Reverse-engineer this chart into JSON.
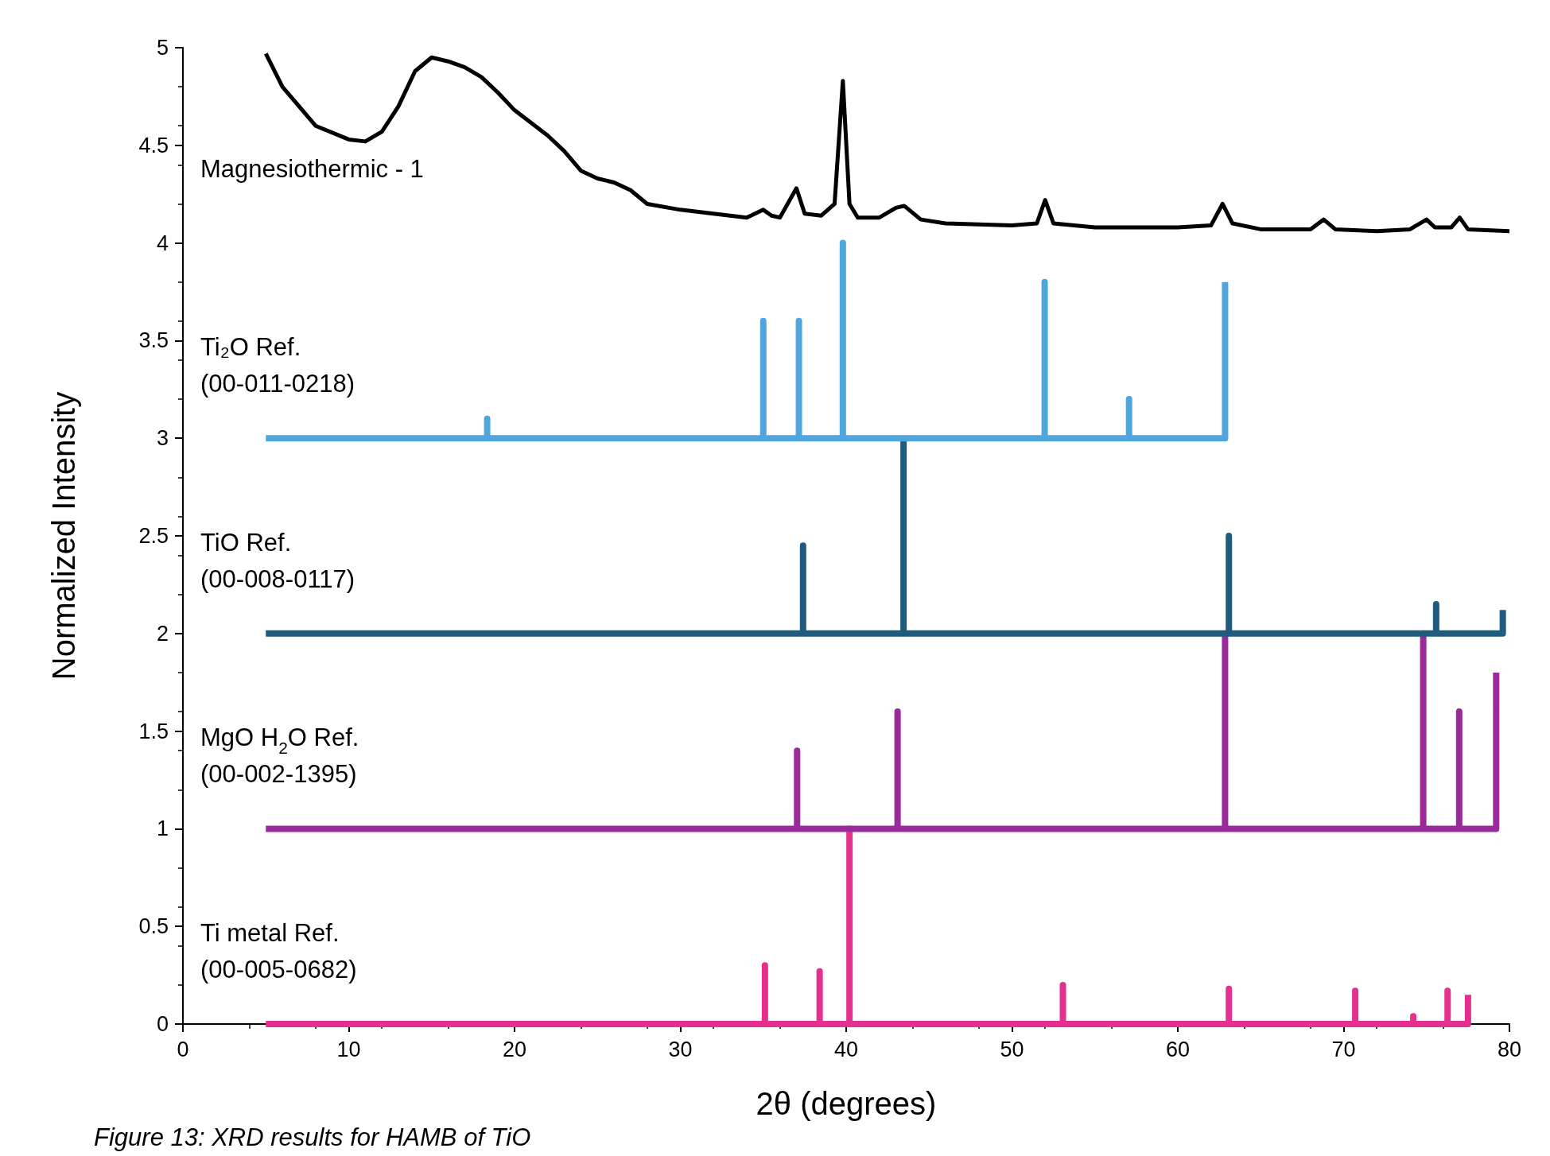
{
  "chart_data": {
    "type": "line",
    "xlabel": "2θ (degrees)",
    "ylabel": "Normalized Intensity",
    "xlim": [
      0,
      80
    ],
    "xticks": [
      0,
      10,
      20,
      30,
      40,
      50,
      60,
      70,
      80
    ],
    "ylim": [
      0,
      5
    ],
    "yticks": [
      0,
      0.5,
      1,
      1.5,
      2,
      2.5,
      3,
      3.5,
      4,
      4.5,
      5
    ],
    "grid": false,
    "legend": false,
    "marker": "none",
    "line_style": "solid",
    "annotations": [
      "Figure 13: XRD results for HAMB of TiO"
    ],
    "series": [
      {
        "name": "Magnesiothermic - 1",
        "color": "#000000",
        "x": [
          5,
          6,
          8,
          10,
          11,
          12,
          13,
          14,
          15,
          16,
          17,
          18,
          19,
          20,
          22,
          23,
          24,
          25,
          26,
          27,
          28,
          30,
          32,
          34,
          35,
          35.5,
          36,
          37,
          37.5,
          38.5,
          39.3,
          39.8,
          40.2,
          40.7,
          42,
          43,
          43.5,
          44.5,
          46,
          50,
          51.5,
          52,
          52.5,
          55,
          60,
          62,
          62.7,
          63.3,
          65,
          68,
          68.8,
          69.5,
          72,
          74,
          75,
          75.5,
          76.5,
          77,
          77.5,
          80
        ],
        "values": [
          4.97,
          4.8,
          4.6,
          4.53,
          4.52,
          4.57,
          4.7,
          4.88,
          4.95,
          4.93,
          4.9,
          4.85,
          4.77,
          4.68,
          4.55,
          4.47,
          4.37,
          4.33,
          4.31,
          4.27,
          4.2,
          4.17,
          4.15,
          4.13,
          4.17,
          4.14,
          4.13,
          4.28,
          4.15,
          4.14,
          4.2,
          4.83,
          4.2,
          4.13,
          4.13,
          4.18,
          4.19,
          4.12,
          4.1,
          4.09,
          4.1,
          4.22,
          4.1,
          4.08,
          4.08,
          4.09,
          4.2,
          4.1,
          4.07,
          4.07,
          4.12,
          4.07,
          4.06,
          4.07,
          4.12,
          4.08,
          4.08,
          4.13,
          4.07,
          4.06
        ]
      },
      {
        "name": "Ti₂O Ref.\n(00-011-0218)",
        "color": "#4ea6dc",
        "x": [
          5,
          18.35,
          18.35,
          18.35,
          35.0,
          35.0,
          35.0,
          37.15,
          37.15,
          37.15,
          39.8,
          39.8,
          39.8,
          51.97,
          51.97,
          51.97,
          57.06,
          57.06,
          57.06,
          62.85,
          62.85
        ],
        "values": [
          3,
          3,
          3.1,
          3,
          3,
          3.6,
          3,
          3,
          3.6,
          3,
          3,
          4.0,
          3,
          3,
          3.8,
          3,
          3,
          3.2,
          3,
          3,
          3.8
        ]
      },
      {
        "name": "TiO Ref.\n(00-008-0117)",
        "color": "#1f5b7e",
        "x": [
          5,
          37.4,
          37.4,
          37.4,
          43.46,
          43.46,
          43.46,
          63.08,
          63.08,
          63.08,
          75.58,
          75.58,
          75.58,
          79.6,
          79.6
        ],
        "values": [
          2,
          2,
          2.45,
          2,
          2,
          2.98,
          2,
          2,
          2.5,
          2,
          2,
          2.15,
          2,
          2,
          2.12
        ]
      },
      {
        "name": "MgO H$_{2}$O Ref.\n(00-002-1395)",
        "color": "#9a2a9b",
        "x": [
          5,
          37.04,
          37.04,
          37.04,
          43.1,
          43.1,
          43.1,
          62.85,
          62.85,
          62.85,
          74.8,
          74.8,
          74.8,
          76.97,
          76.97,
          76.97,
          79.2,
          79.2
        ],
        "values": [
          1,
          1,
          1.4,
          1,
          1,
          1.6,
          1,
          1,
          2.0,
          1,
          1,
          2.0,
          1,
          1,
          1.6,
          1,
          1,
          1.8
        ]
      },
      {
        "name": "Ti metal Ref.\n(00-005-0682)",
        "color": "#e6308f",
        "x": [
          5,
          35.1,
          35.1,
          35.1,
          38.4,
          38.4,
          38.4,
          40.2,
          40.2,
          40.2,
          53.07,
          53.07,
          53.07,
          63.08,
          63.08,
          63.08,
          70.7,
          70.7,
          70.7,
          74.2,
          74.2,
          74.2,
          76.27,
          76.27,
          76.27,
          77.5,
          77.5
        ],
        "values": [
          0,
          0,
          0.3,
          0,
          0,
          0.27,
          0,
          0,
          1.0,
          0,
          0,
          0.2,
          0,
          0,
          0.18,
          0,
          0,
          0.17,
          0,
          0,
          0.04,
          0,
          0,
          0.17,
          0,
          0,
          0.15
        ]
      }
    ]
  }
}
